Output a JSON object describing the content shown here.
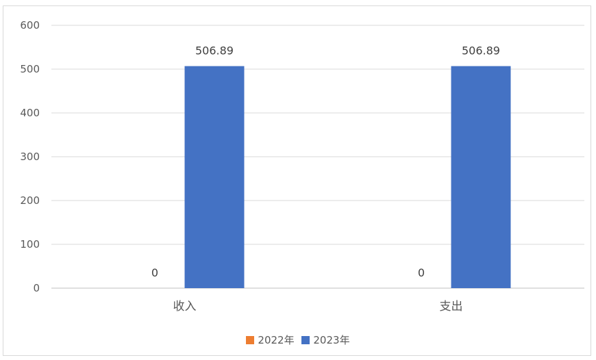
{
  "chart_data": {
    "type": "bar",
    "categories": [
      "收入",
      "支出"
    ],
    "series": [
      {
        "name": "2022年",
        "values": [
          0,
          0
        ],
        "color": "#ED7D31"
      },
      {
        "name": "2023年",
        "values": [
          506.89,
          506.89
        ],
        "color": "#4472C4"
      }
    ],
    "data_labels": [
      [
        "0",
        "0"
      ],
      [
        "506.89",
        "506.89"
      ]
    ],
    "yticks": [
      0,
      100,
      200,
      300,
      400,
      500,
      600
    ],
    "ylim": [
      0,
      600
    ],
    "grid": true,
    "legend": "bottom"
  }
}
